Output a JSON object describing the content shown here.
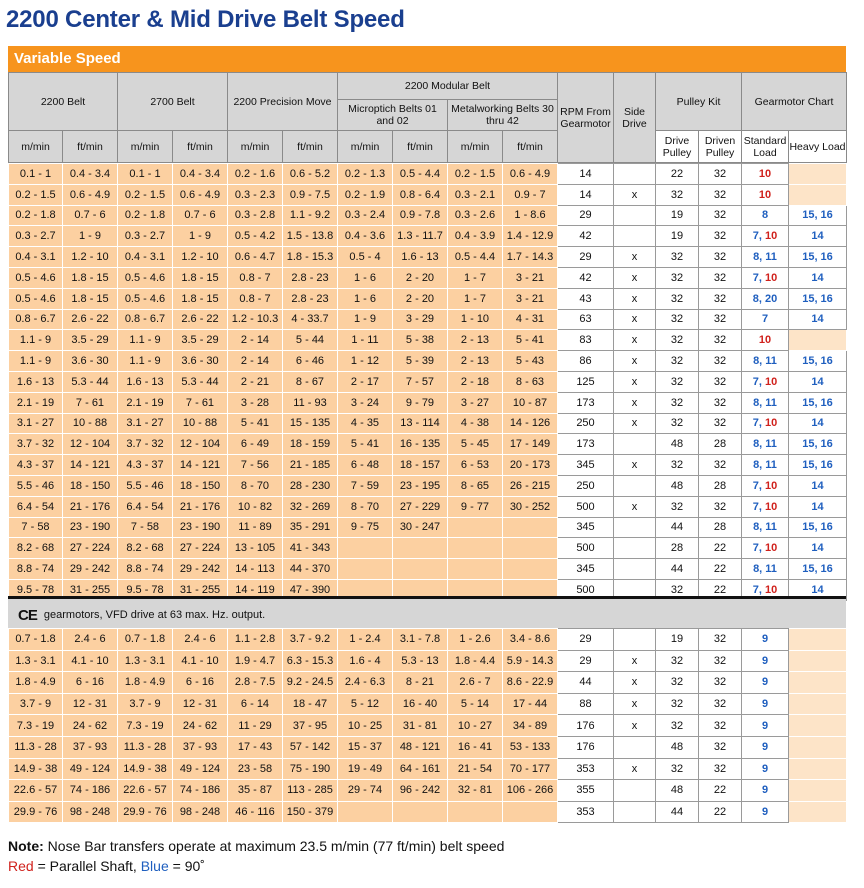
{
  "title": "2200 Center & Mid Drive Belt Speed",
  "band": "Variable Speed",
  "headers": {
    "belt2200": "2200 Belt",
    "belt2700": "2700 Belt",
    "precision": "2200 Precision Move",
    "modular": "2200 Modular Belt",
    "microptich": "Microptich Belts 01 and 02",
    "metalworking": "Metalworking Belts 30 thru 42",
    "rpm": "RPM From Gearmotor",
    "side_drive": "Side Drive",
    "pulley_kit": "Pulley Kit",
    "gearmotor_chart": "Gearmotor Chart",
    "m_min": "m/min",
    "ft_min": "ft/min",
    "drive_pulley": "Drive Pulley",
    "driven_pulley": "Driven Pulley",
    "standard_load": "Standard Load",
    "heavy_load": "Heavy Load"
  },
  "rows1": [
    [
      [
        "0.1 - 1",
        "0.4 - 3.4",
        "0.1 - 1",
        "0.4 - 3.4",
        "0.2 - 1.6",
        "0.6 - 5.2",
        "0.2 - 1.3",
        "0.5 - 4.4",
        "0.2 - 1.5",
        "0.6 - 4.9"
      ],
      "14",
      "",
      "22",
      "32",
      [
        [
          "10",
          "r"
        ]
      ],
      []
    ],
    [
      [
        "0.2 - 1.5",
        "0.6 - 4.9",
        "0.2 - 1.5",
        "0.6 - 4.9",
        "0.3 - 2.3",
        "0.9 - 7.5",
        "0.2 - 1.9",
        "0.8 - 6.4",
        "0.3 - 2.1",
        "0.9 - 7"
      ],
      "14",
      "x",
      "32",
      "32",
      [
        [
          "10",
          "r"
        ]
      ],
      []
    ],
    [
      [
        "0.2 - 1.8",
        "0.7 - 6",
        "0.2 - 1.8",
        "0.7 - 6",
        "0.3 - 2.8",
        "1.1 - 9.2",
        "0.3 - 2.4",
        "0.9 - 7.8",
        "0.3 - 2.6",
        "1 - 8.6"
      ],
      "29",
      "",
      "19",
      "32",
      [
        [
          "8",
          "b"
        ]
      ],
      [
        [
          "15, 16",
          "b"
        ]
      ]
    ],
    [
      [
        "0.3 - 2.7",
        "1 - 9",
        "0.3 - 2.7",
        "1 - 9",
        "0.5 - 4.2",
        "1.5 - 13.8",
        "0.4 - 3.6",
        "1.3 - 11.7",
        "0.4 - 3.9",
        "1.4 - 12.9"
      ],
      "42",
      "",
      "19",
      "32",
      [
        [
          "7, ",
          "b"
        ],
        [
          "10",
          "r"
        ]
      ],
      [
        [
          "14",
          "b"
        ]
      ]
    ],
    [
      [
        "0.4 - 3.1",
        "1.2 - 10",
        "0.4 - 3.1",
        "1.2 - 10",
        "0.6 - 4.7",
        "1.8 - 15.3",
        "0.5 - 4",
        "1.6 - 13",
        "0.5 - 4.4",
        "1.7 - 14.3"
      ],
      "29",
      "x",
      "32",
      "32",
      [
        [
          "8, 11",
          "b"
        ]
      ],
      [
        [
          "15, 16",
          "b"
        ]
      ]
    ],
    [
      [
        "0.5 - 4.6",
        "1.8 - 15",
        "0.5 - 4.6",
        "1.8 - 15",
        "0.8 - 7",
        "2.8 - 23",
        "1 - 6",
        "2 - 20",
        "1 - 7",
        "3 - 21"
      ],
      "42",
      "x",
      "32",
      "32",
      [
        [
          "7, ",
          "b"
        ],
        [
          "10",
          "r"
        ]
      ],
      [
        [
          "14",
          "b"
        ]
      ]
    ],
    [
      [
        "0.5 - 4.6",
        "1.8 - 15",
        "0.5 - 4.6",
        "1.8 - 15",
        "0.8 - 7",
        "2.8 - 23",
        "1 - 6",
        "2 - 20",
        "1 - 7",
        "3 - 21"
      ],
      "43",
      "x",
      "32",
      "32",
      [
        [
          "8, 20",
          "b"
        ]
      ],
      [
        [
          "15, 16",
          "b"
        ]
      ]
    ],
    [
      [
        "0.8 - 6.7",
        "2.6 - 22",
        "0.8 - 6.7",
        "2.6 - 22",
        "1.2 - 10.3",
        "4 - 33.7",
        "1 - 9",
        "3 - 29",
        "1 - 10",
        "4 - 31"
      ],
      "63",
      "x",
      "32",
      "32",
      [
        [
          "7",
          "b"
        ]
      ],
      [
        [
          "14",
          "b"
        ]
      ]
    ],
    [
      [
        "1.1 - 9",
        "3.5 - 29",
        "1.1 - 9",
        "3.5 - 29",
        "2 - 14",
        "5 - 44",
        "1 - 11",
        "5 - 38",
        "2 - 13",
        "5 - 41"
      ],
      "83",
      "x",
      "32",
      "32",
      [
        [
          "10",
          "r"
        ]
      ],
      []
    ],
    [
      [
        "1.1 - 9",
        "3.6 - 30",
        "1.1 - 9",
        "3.6 - 30",
        "2 - 14",
        "6 - 46",
        "1 - 12",
        "5 - 39",
        "2 - 13",
        "5 - 43"
      ],
      "86",
      "x",
      "32",
      "32",
      [
        [
          "8, 11",
          "b"
        ]
      ],
      [
        [
          "15, 16",
          "b"
        ]
      ]
    ],
    [
      [
        "1.6 - 13",
        "5.3 - 44",
        "1.6 - 13",
        "5.3 - 44",
        "2 - 21",
        "8 - 67",
        "2 - 17",
        "7 - 57",
        "2 - 18",
        "8 - 63"
      ],
      "125",
      "x",
      "32",
      "32",
      [
        [
          "7, ",
          "b"
        ],
        [
          "10",
          "r"
        ]
      ],
      [
        [
          "14",
          "b"
        ]
      ]
    ],
    [
      [
        "2.1 - 19",
        "7 - 61",
        "2.1 - 19",
        "7 - 61",
        "3 - 28",
        "11 - 93",
        "3 - 24",
        "9 - 79",
        "3 - 27",
        "10 - 87"
      ],
      "173",
      "x",
      "32",
      "32",
      [
        [
          "8, 11",
          "b"
        ]
      ],
      [
        [
          "15, 16",
          "b"
        ]
      ]
    ],
    [
      [
        "3.1 - 27",
        "10 - 88",
        "3.1 - 27",
        "10 - 88",
        "5 - 41",
        "15 - 135",
        "4 - 35",
        "13 - 114",
        "4 - 38",
        "14 - 126"
      ],
      "250",
      "x",
      "32",
      "32",
      [
        [
          "7, ",
          "b"
        ],
        [
          "10",
          "r"
        ]
      ],
      [
        [
          "14",
          "b"
        ]
      ]
    ],
    [
      [
        "3.7 - 32",
        "12 - 104",
        "3.7 - 32",
        "12 - 104",
        "6 - 49",
        "18 - 159",
        "5 - 41",
        "16 - 135",
        "5 - 45",
        "17 - 149"
      ],
      "173",
      "",
      "48",
      "28",
      [
        [
          "8, 11",
          "b"
        ]
      ],
      [
        [
          "15, 16",
          "b"
        ]
      ]
    ],
    [
      [
        "4.3 - 37",
        "14 - 121",
        "4.3 - 37",
        "14 - 121",
        "7 - 56",
        "21 - 185",
        "6 - 48",
        "18 - 157",
        "6 - 53",
        "20 - 173"
      ],
      "345",
      "x",
      "32",
      "32",
      [
        [
          "8, 11",
          "b"
        ]
      ],
      [
        [
          "15, 16",
          "b"
        ]
      ]
    ],
    [
      [
        "5.5 - 46",
        "18 - 150",
        "5.5 - 46",
        "18 - 150",
        "8 - 70",
        "28 - 230",
        "7 - 59",
        "23 - 195",
        "8 - 65",
        "26 - 215"
      ],
      "250",
      "",
      "48",
      "28",
      [
        [
          "7, ",
          "b"
        ],
        [
          "10",
          "r"
        ]
      ],
      [
        [
          "14",
          "b"
        ]
      ]
    ],
    [
      [
        "6.4 - 54",
        "21 - 176",
        "6.4 - 54",
        "21 - 176",
        "10 - 82",
        "32 - 269",
        "8 - 70",
        "27 - 229",
        "9 - 77",
        "30 - 252"
      ],
      "500",
      "x",
      "32",
      "32",
      [
        [
          "7, ",
          "b"
        ],
        [
          "10",
          "r"
        ]
      ],
      [
        [
          "14",
          "b"
        ]
      ]
    ],
    [
      [
        "7 - 58",
        "23 - 190",
        "7 - 58",
        "23 - 190",
        "11 - 89",
        "35 - 291",
        "9 - 75",
        "30 - 247",
        "",
        ""
      ],
      "345",
      "",
      "44",
      "28",
      [
        [
          "8, 11",
          "b"
        ]
      ],
      [
        [
          "15, 16",
          "b"
        ]
      ]
    ],
    [
      [
        "8.2 - 68",
        "27 - 224",
        "8.2 - 68",
        "27 - 224",
        "13 - 105",
        "41 - 343",
        "",
        "",
        "",
        ""
      ],
      "500",
      "",
      "28",
      "22",
      [
        [
          "7, ",
          "b"
        ],
        [
          "10",
          "r"
        ]
      ],
      [
        [
          "14",
          "b"
        ]
      ]
    ],
    [
      [
        "8.8 - 74",
        "29 - 242",
        "8.8 - 74",
        "29 - 242",
        "14 - 113",
        "44 - 370",
        "",
        "",
        "",
        ""
      ],
      "345",
      "",
      "44",
      "22",
      [
        [
          "8, 11",
          "b"
        ]
      ],
      [
        [
          "15, 16",
          "b"
        ]
      ]
    ],
    [
      [
        "9.5 - 78",
        "31 - 255",
        "9.5 - 78",
        "31 - 255",
        "14 - 119",
        "47 - 390",
        "",
        "",
        "",
        ""
      ],
      "500",
      "",
      "32",
      "22",
      [
        [
          "7, ",
          "b"
        ],
        [
          "10",
          "r"
        ]
      ],
      [
        [
          "14",
          "b"
        ]
      ]
    ]
  ],
  "ce_icon": "CE",
  "ce_text": "gearmotors, VFD drive at 63 max. Hz. output.",
  "rows2": [
    [
      [
        "0.7 - 1.8",
        "2.4 - 6",
        "0.7 - 1.8",
        "2.4 - 6",
        "1.1 - 2.8",
        "3.7 - 9.2",
        "1 - 2.4",
        "3.1 - 7.8",
        "1 - 2.6",
        "3.4 - 8.6"
      ],
      "29",
      "",
      "19",
      "32",
      [
        [
          "9",
          "b"
        ]
      ],
      []
    ],
    [
      [
        "1.3 - 3.1",
        "4.1 - 10",
        "1.3 - 3.1",
        "4.1 - 10",
        "1.9 - 4.7",
        "6.3 - 15.3",
        "1.6 - 4",
        "5.3 - 13",
        "1.8 - 4.4",
        "5.9 - 14.3"
      ],
      "29",
      "x",
      "32",
      "32",
      [
        [
          "9",
          "b"
        ]
      ],
      []
    ],
    [
      [
        "1.8 - 4.9",
        "6 - 16",
        "1.8 - 4.9",
        "6 - 16",
        "2.8 - 7.5",
        "9.2 - 24.5",
        "2.4 - 6.3",
        "8 - 21",
        "2.6 - 7",
        "8.6 - 22.9"
      ],
      "44",
      "x",
      "32",
      "32",
      [
        [
          "9",
          "b"
        ]
      ],
      []
    ],
    [
      [
        "3.7 - 9",
        "12 - 31",
        "3.7 - 9",
        "12 - 31",
        "6 - 14",
        "18 - 47",
        "5 - 12",
        "16 - 40",
        "5 - 14",
        "17 - 44"
      ],
      "88",
      "x",
      "32",
      "32",
      [
        [
          "9",
          "b"
        ]
      ],
      []
    ],
    [
      [
        "7.3 - 19",
        "24 - 62",
        "7.3 - 19",
        "24 - 62",
        "11 - 29",
        "37 - 95",
        "10 - 25",
        "31 - 81",
        "10 - 27",
        "34 - 89"
      ],
      "176",
      "x",
      "32",
      "32",
      [
        [
          "9",
          "b"
        ]
      ],
      []
    ],
    [
      [
        "11.3 - 28",
        "37 - 93",
        "11.3 - 28",
        "37 - 93",
        "17 - 43",
        "57 - 142",
        "15 - 37",
        "48 - 121",
        "16 - 41",
        "53 - 133"
      ],
      "176",
      "",
      "48",
      "32",
      [
        [
          "9",
          "b"
        ]
      ],
      []
    ],
    [
      [
        "14.9 - 38",
        "49 - 124",
        "14.9 - 38",
        "49 - 124",
        "23 - 58",
        "75 - 190",
        "19 - 49",
        "64 - 161",
        "21 - 54",
        "70 - 177"
      ],
      "353",
      "x",
      "32",
      "32",
      [
        [
          "9",
          "b"
        ]
      ],
      []
    ],
    [
      [
        "22.6 - 57",
        "74 - 186",
        "22.6 - 57",
        "74 - 186",
        "35 - 87",
        "113 - 285",
        "29 - 74",
        "96 - 242",
        "32 - 81",
        "106 - 266"
      ],
      "355",
      "",
      "48",
      "22",
      [
        [
          "9",
          "b"
        ]
      ],
      []
    ],
    [
      [
        "29.9 - 76",
        "98 - 248",
        "29.9 - 76",
        "98 - 248",
        "46 - 116",
        "150 - 379",
        "",
        "",
        "",
        ""
      ],
      "353",
      "",
      "44",
      "22",
      [
        [
          "9",
          "b"
        ]
      ],
      []
    ]
  ],
  "note_label": "Note:",
  "note_text": " Nose Bar transfers operate at maximum 23.5 m/min (77 ft/min) belt speed",
  "legend_red": "Red",
  "legend_mid": " = Parallel Shaft, ",
  "legend_blue": "Blue",
  "legend_end": " = 90˚"
}
